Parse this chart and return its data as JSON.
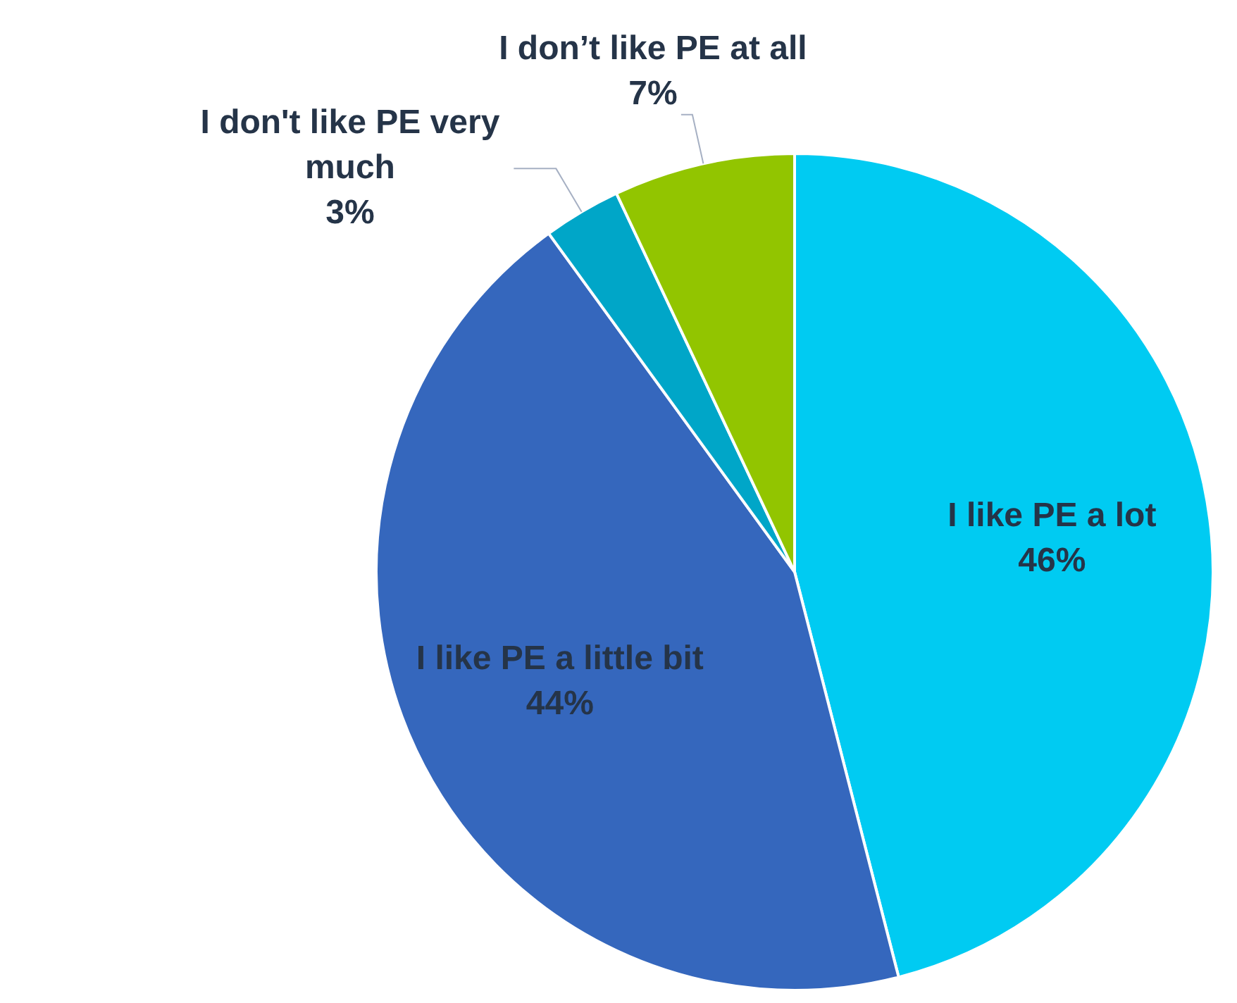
{
  "chart_data": {
    "type": "pie",
    "categories": [
      "I like PE a lot",
      "I like PE a little bit",
      "I don't like PE very much",
      "I don’t like PE at all"
    ],
    "values": [
      46,
      44,
      3,
      7
    ],
    "value_labels": [
      "46%",
      "44%",
      "3%",
      "7%"
    ],
    "colors": [
      "#00cbf2",
      "#3567bd",
      "#00a6c8",
      "#92c500"
    ],
    "legend": false
  }
}
